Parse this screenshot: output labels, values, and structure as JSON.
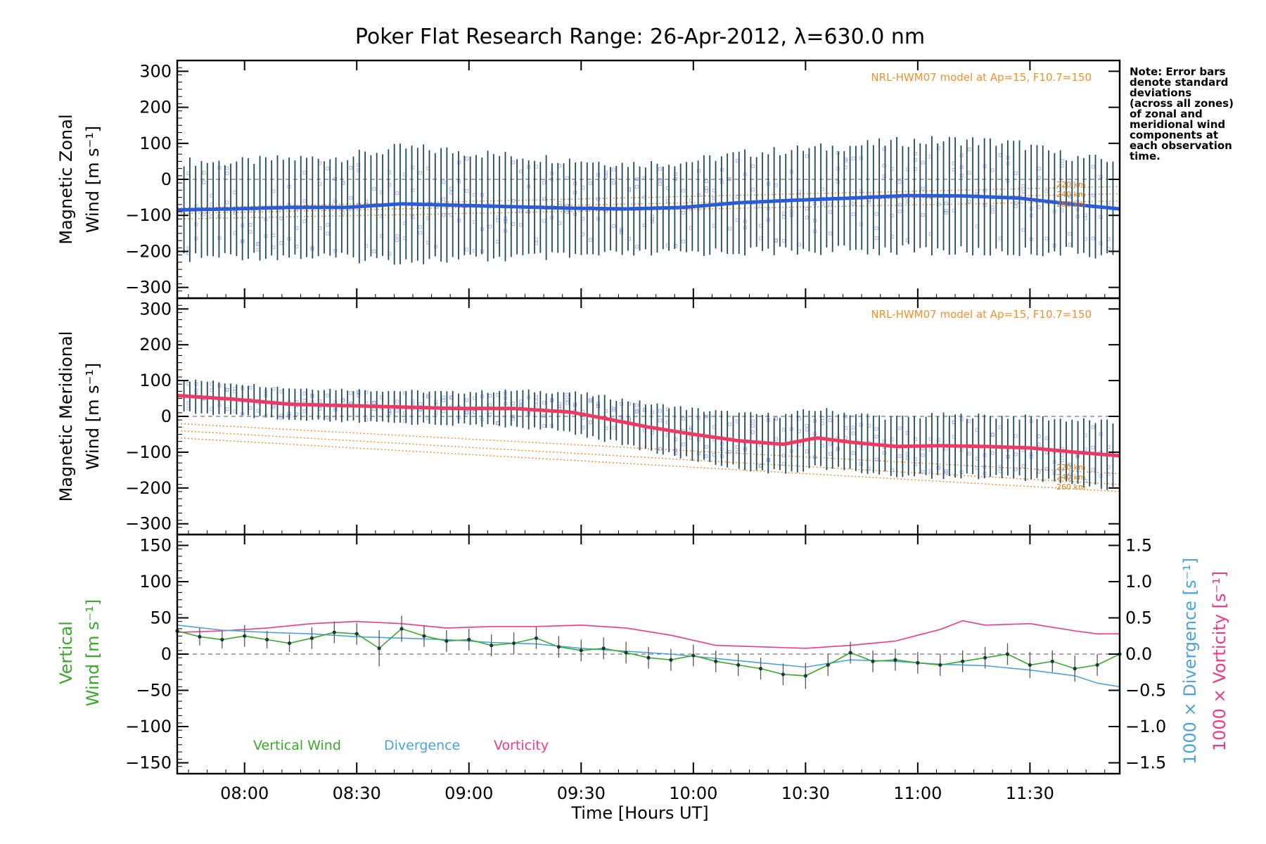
{
  "chart_data": [
    {
      "type": "line",
      "title": "Poker Flat Research Range: 26-Apr-2012, λ=630.0 nm",
      "ylabel": "Magnetic Zonal Wind [m s⁻¹]",
      "ylabel_lines": [
        "Magnetic Zonal",
        "Wind [m s⁻¹]"
      ],
      "ylim": [
        -330,
        330
      ],
      "yticks": [
        300,
        200,
        100,
        0,
        -100,
        -200,
        -300
      ],
      "ytick_labels": [
        "300",
        "200",
        "100",
        "0",
        "−100",
        "−200",
        "−300"
      ],
      "xlim_hours": [
        7.7,
        11.9
      ],
      "annotation": "NRL-HWM07 model at Ap=15, F10.7=150",
      "model_altitudes": [
        "220 km",
        "240 km",
        "260 km"
      ],
      "grid": false,
      "series": [
        {
          "x_hours": [
            7.7,
            7.95,
            8.2,
            8.45,
            8.7,
            8.95,
            9.2,
            9.45,
            9.7,
            9.95,
            10.2,
            10.45,
            10.7,
            10.95,
            11.2,
            11.45,
            11.7,
            11.9
          ],
          "values": [
            -85,
            -82,
            -78,
            -78,
            -68,
            -72,
            -76,
            -80,
            -82,
            -78,
            -65,
            -58,
            -52,
            -45,
            -46,
            -52,
            -70,
            -82
          ],
          "errors": [
            135,
            130,
            135,
            140,
            155,
            150,
            140,
            135,
            125,
            125,
            135,
            140,
            145,
            150,
            155,
            150,
            130,
            135
          ]
        }
      ]
    },
    {
      "type": "line",
      "ylabel": "Magnetic Meridional Wind [m s⁻¹]",
      "ylabel_lines": [
        "Magnetic Meridional",
        "Wind [m s⁻¹]"
      ],
      "ylim": [
        -330,
        330
      ],
      "yticks": [
        300,
        200,
        100,
        0,
        -100,
        -200,
        -300
      ],
      "ytick_labels": [
        "300",
        "200",
        "100",
        "0",
        "−100",
        "−200",
        "−300"
      ],
      "xlim_hours": [
        7.7,
        11.9
      ],
      "annotation": "NRL-HWM07 model at Ap=15, F10.7=150",
      "model_altitudes": [
        "220 km",
        "240 km",
        "260 km"
      ],
      "grid": false,
      "series": [
        {
          "x_hours": [
            7.7,
            7.95,
            8.2,
            8.45,
            8.7,
            8.95,
            9.2,
            9.45,
            9.6,
            9.8,
            10.0,
            10.2,
            10.4,
            10.55,
            10.7,
            10.9,
            11.1,
            11.3,
            11.5,
            11.7,
            11.9
          ],
          "values": [
            58,
            48,
            34,
            30,
            26,
            22,
            22,
            12,
            -5,
            -30,
            -50,
            -68,
            -78,
            -60,
            -72,
            -84,
            -82,
            -84,
            -88,
            -100,
            -110
          ],
          "errors": [
            45,
            45,
            45,
            45,
            45,
            45,
            50,
            55,
            60,
            65,
            70,
            75,
            80,
            80,
            80,
            80,
            85,
            85,
            85,
            90,
            90
          ]
        }
      ]
    },
    {
      "type": "line",
      "xlabel": "Time [Hours UT]",
      "ylabel": "Vertical Wind [m s⁻¹]",
      "ylabel_lines": [
        "Vertical",
        "Wind [m s⁻¹]"
      ],
      "ylabel_right_1": "1000 × Divergence [s⁻¹]",
      "ylabel_right_2": "1000 × Vorticity [s⁻¹]",
      "ylim": [
        -165,
        165
      ],
      "yticks": [
        150,
        100,
        50,
        0,
        -50,
        -100,
        -150
      ],
      "ytick_labels": [
        "150",
        "100",
        "50",
        "0",
        "−50",
        "−100",
        "−150"
      ],
      "y2lim": [
        -1.65,
        1.65
      ],
      "y2ticks": [
        1.5,
        1.0,
        0.5,
        0.0,
        -0.5,
        -1.0,
        -1.5
      ],
      "y2tick_labels": [
        "1.5",
        "1.0",
        "0.5",
        "0.0",
        "−0.5",
        "−1.0",
        "−1.5"
      ],
      "xlim_hours": [
        7.7,
        11.9
      ],
      "xticks": [
        8.0,
        8.5,
        9.0,
        9.5,
        10.0,
        10.5,
        11.0,
        11.5
      ],
      "xtick_labels": [
        "08:00",
        "08:30",
        "09:00",
        "09:30",
        "10:00",
        "10:30",
        "11:00",
        "11:30"
      ],
      "legend": [
        "Vertical Wind",
        "Divergence",
        "Vorticity"
      ],
      "grid": false,
      "series": [
        {
          "name": "Vertical Wind",
          "x_hours": [
            7.7,
            7.8,
            7.9,
            8.0,
            8.1,
            8.2,
            8.3,
            8.4,
            8.5,
            8.6,
            8.7,
            8.8,
            8.9,
            9.0,
            9.1,
            9.2,
            9.3,
            9.4,
            9.5,
            9.6,
            9.7,
            9.8,
            9.9,
            10.0,
            10.1,
            10.2,
            10.3,
            10.4,
            10.5,
            10.6,
            10.7,
            10.8,
            10.9,
            11.0,
            11.1,
            11.2,
            11.3,
            11.4,
            11.5,
            11.6,
            11.7,
            11.8,
            11.9
          ],
          "values": [
            32,
            24,
            20,
            25,
            20,
            15,
            22,
            30,
            28,
            8,
            35,
            25,
            18,
            20,
            12,
            15,
            22,
            10,
            5,
            8,
            2,
            -5,
            -8,
            -2,
            -10,
            -15,
            -20,
            -28,
            -30,
            -15,
            2,
            -10,
            -8,
            -12,
            -15,
            -10,
            -5,
            0,
            -15,
            -10,
            -20,
            -15,
            0
          ],
          "errors": [
            10,
            12,
            12,
            15,
            12,
            12,
            15,
            15,
            15,
            25,
            18,
            15,
            15,
            15,
            15,
            15,
            15,
            15,
            15,
            15,
            15,
            15,
            15,
            15,
            15,
            15,
            15,
            15,
            18,
            15,
            15,
            15,
            15,
            15,
            15,
            15,
            15,
            15,
            18,
            15,
            18,
            15,
            15
          ]
        },
        {
          "name": "Divergence",
          "x_hours": [
            7.7,
            7.9,
            8.1,
            8.3,
            8.5,
            8.7,
            8.9,
            9.1,
            9.3,
            9.5,
            9.7,
            9.9,
            10.1,
            10.3,
            10.5,
            10.7,
            10.9,
            11.1,
            11.3,
            11.5,
            11.7,
            11.8,
            11.9
          ],
          "values": [
            0.4,
            0.33,
            0.3,
            0.28,
            0.24,
            0.22,
            0.2,
            0.16,
            0.14,
            0.08,
            0.04,
            0.0,
            -0.06,
            -0.12,
            -0.18,
            -0.08,
            -0.1,
            -0.14,
            -0.16,
            -0.22,
            -0.3,
            -0.4,
            -0.45
          ]
        },
        {
          "name": "Vorticity",
          "x_hours": [
            7.7,
            7.9,
            8.1,
            8.3,
            8.5,
            8.7,
            8.9,
            9.1,
            9.3,
            9.5,
            9.7,
            9.9,
            10.1,
            10.3,
            10.5,
            10.7,
            10.9,
            11.0,
            11.1,
            11.2,
            11.3,
            11.5,
            11.7,
            11.8,
            11.9
          ],
          "values": [
            0.3,
            0.32,
            0.36,
            0.42,
            0.45,
            0.42,
            0.36,
            0.38,
            0.38,
            0.4,
            0.36,
            0.26,
            0.12,
            0.1,
            0.08,
            0.12,
            0.18,
            0.26,
            0.34,
            0.46,
            0.4,
            0.42,
            0.32,
            0.28,
            0.28
          ]
        }
      ]
    }
  ],
  "note_lines": [
    "Note: Error bars",
    "denote standard",
    "deviations",
    "(across all zones)",
    "of zonal and",
    "meridional wind",
    "components at",
    "each observation",
    "time."
  ],
  "colors": {
    "zonal_mean": "#2a5bd8",
    "meridional_mean": "#ee3a62",
    "error_bars": "#1f4b5a",
    "model": "#f0902a",
    "vertical": "#3aa82a",
    "divergence": "#4aa3dc",
    "vorticity": "#ee3a82",
    "zones": "#9090e0"
  }
}
